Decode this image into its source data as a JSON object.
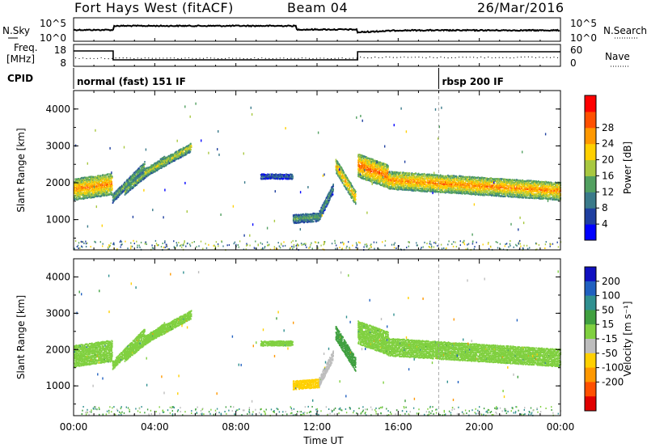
{
  "header": {
    "title": "Fort Hays West (fitACF)",
    "beam": "Beam 04",
    "date": "26/Mar/2016"
  },
  "top_panels": {
    "nsky_label": "N.Sky",
    "nsearch_label": "N.Search",
    "freq_label_line1": "Freq.",
    "freq_label_line2": "[MHz]",
    "nave_label": "Nave",
    "cpid_label": "CPID",
    "noise_ticks": [
      "10^5",
      "10^0"
    ],
    "freq_ticks": [
      "18",
      "8"
    ],
    "nave_ticks": [
      "60",
      "0"
    ],
    "cpid_segments": [
      {
        "start_hour": 0,
        "label": "normal (fast) 151 IF"
      },
      {
        "start_hour": 18,
        "label": "rbsp 200 IF"
      }
    ]
  },
  "axes": {
    "time_ticks": [
      "00:00",
      "04:00",
      "08:00",
      "12:00",
      "16:00",
      "20:00",
      "00:00"
    ],
    "x_label": "Time UT",
    "y_label": "Slant Range [km]",
    "y_ticks": [
      "1000",
      "2000",
      "3000",
      "4000"
    ]
  },
  "power_colorbar": {
    "label": "Power [dB]",
    "ticks": [
      "4",
      "8",
      "12",
      "16",
      "20",
      "24",
      "28"
    ],
    "colors": [
      "#0000ff",
      "#1f3fa0",
      "#3a7a8a",
      "#52a060",
      "#a8c840",
      "#ffd000",
      "#ff9800",
      "#ff5000",
      "#ff0000"
    ]
  },
  "velocity_colorbar": {
    "label": "Velocity [m s⁻¹]",
    "ticks": [
      "200",
      "100",
      "50",
      "15",
      "-15",
      "-50",
      "-100",
      "-200"
    ],
    "colors": [
      "#1010c0",
      "#2060c0",
      "#309090",
      "#40a040",
      "#80d040",
      "#bdbdbd",
      "#ffd000",
      "#ff9800",
      "#ff5000",
      "#e00000"
    ]
  },
  "chart_data": {
    "type": "heatmap",
    "x_range_hours": [
      0,
      24
    ],
    "y_range_km": [
      180,
      4500
    ],
    "power_bands": [
      {
        "t0": 0.0,
        "t1": 1.9,
        "center_km": 1850,
        "center_km_end": 2000,
        "width_km": 600,
        "power": 24,
        "velocity": 0
      },
      {
        "t0": 1.9,
        "t1": 3.5,
        "center_km": 1600,
        "center_km_end": 2500,
        "width_km": 250,
        "power": 14,
        "velocity": 0
      },
      {
        "t0": 2.5,
        "t1": 4.5,
        "center_km": 1800,
        "center_km_end": 2700,
        "width_km": 200,
        "power": 16,
        "velocity": 0
      },
      {
        "t0": 3.5,
        "t1": 5.8,
        "center_km": 2300,
        "center_km_end": 3000,
        "width_km": 250,
        "power": 18,
        "velocity": 0
      },
      {
        "t0": 9.2,
        "t1": 10.8,
        "center_km": 2200,
        "center_km_end": 2200,
        "width_km": 150,
        "power": 8,
        "velocity": 0
      },
      {
        "t0": 10.8,
        "t1": 12.1,
        "center_km": 1050,
        "center_km_end": 1100,
        "width_km": 250,
        "power": 13,
        "velocity": -60
      },
      {
        "t0": 12.1,
        "t1": 12.8,
        "center_km": 1150,
        "center_km_end": 1900,
        "width_km": 280,
        "power": 12,
        "velocity": -40
      },
      {
        "t0": 12.9,
        "t1": 13.9,
        "center_km": 2500,
        "center_km_end": 1600,
        "width_km": 400,
        "power": 22,
        "velocity": 30
      },
      {
        "t0": 14.0,
        "t1": 15.5,
        "center_km": 2500,
        "center_km_end": 2200,
        "width_km": 650,
        "power": 26,
        "velocity": 0
      },
      {
        "t0": 15.5,
        "t1": 24.0,
        "center_km": 2100,
        "center_km_end": 1800,
        "width_km": 500,
        "power": 24,
        "velocity": 0
      }
    ]
  }
}
